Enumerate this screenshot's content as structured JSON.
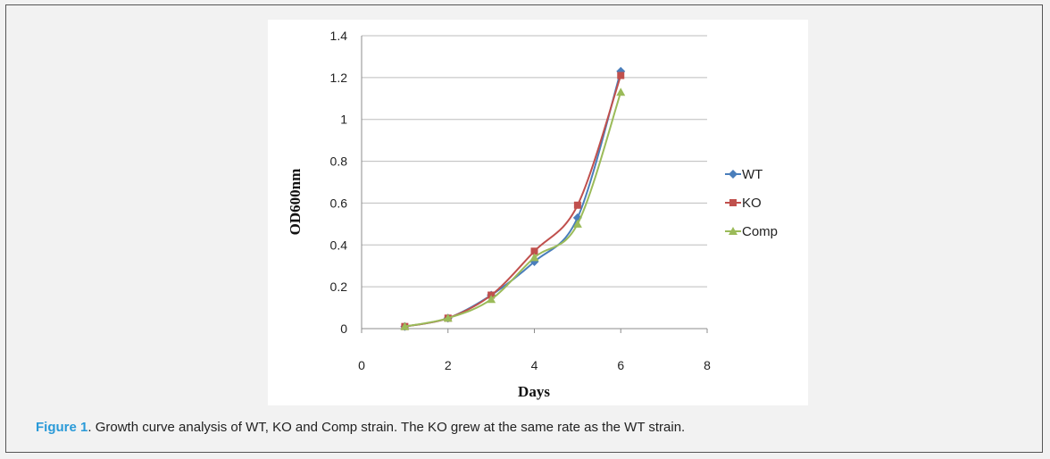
{
  "chart_data": {
    "type": "line",
    "xlabel": "Days",
    "ylabel": "OD600nm",
    "xlim": [
      0,
      8
    ],
    "ylim": [
      0,
      1.4
    ],
    "xticks": [
      "0",
      "2",
      "4",
      "6",
      "8"
    ],
    "yticks": [
      "0",
      "0.2",
      "0.4",
      "0.6",
      "0.8",
      "1",
      "1.2",
      "1.4"
    ],
    "grid": "horizontal",
    "legend_position": "right",
    "series": [
      {
        "name": "WT",
        "color": "#4a7ebb",
        "marker": "diamond",
        "x": [
          1,
          2,
          3,
          4,
          5,
          6
        ],
        "y": [
          0.01,
          0.05,
          0.16,
          0.32,
          0.53,
          1.23
        ]
      },
      {
        "name": "KO",
        "color": "#c0504d",
        "marker": "square",
        "x": [
          1,
          2,
          3,
          4,
          5,
          6
        ],
        "y": [
          0.01,
          0.05,
          0.16,
          0.37,
          0.59,
          1.21
        ]
      },
      {
        "name": "Comp",
        "color": "#9bbb59",
        "marker": "triangle",
        "x": [
          1,
          2,
          3,
          4,
          5,
          6
        ],
        "y": [
          0.01,
          0.05,
          0.14,
          0.34,
          0.5,
          1.13
        ]
      }
    ]
  },
  "caption": {
    "label": "Figure 1",
    "text": ". Growth curve analysis of WT, KO and Comp strain. The KO grew at the same rate as the WT strain."
  }
}
